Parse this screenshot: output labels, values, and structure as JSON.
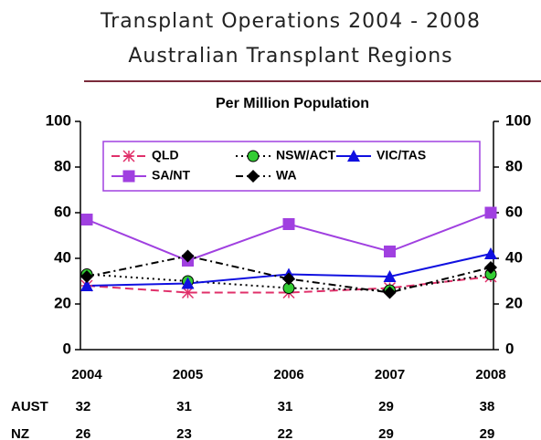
{
  "chart_data": {
    "type": "line",
    "title": "Transplant Operations  2004 - 2008",
    "subtitle": "Australian Transplant Regions",
    "axis_title": "Per Million Population",
    "categories": [
      "2004",
      "2005",
      "2006",
      "2007",
      "2008"
    ],
    "series": [
      {
        "name": "QLD",
        "color": "#e0306a",
        "marker": "asterisk",
        "dash": "9 5",
        "values": [
          28,
          25,
          25,
          27,
          32
        ]
      },
      {
        "name": "NSW/ACT",
        "color": "#000000",
        "marker_color": "#33cc33",
        "marker": "circle",
        "dash": "2 4",
        "values": [
          33,
          30,
          27,
          26,
          33
        ]
      },
      {
        "name": "VIC/TAS",
        "color": "#1010e0",
        "marker": "triangle",
        "values": [
          28,
          29,
          33,
          32,
          42
        ]
      },
      {
        "name": "SA/NT",
        "color": "#a040e0",
        "marker": "square",
        "values": [
          57,
          39,
          55,
          43,
          60
        ]
      },
      {
        "name": "WA",
        "color": "#000000",
        "marker": "diamond",
        "dash": "8 4 2 4",
        "values": [
          32,
          41,
          31,
          25,
          36
        ]
      }
    ],
    "ylim": [
      0,
      100
    ],
    "yticks": [
      0,
      20,
      40,
      60,
      80,
      100
    ],
    "y2lim": [
      0,
      100
    ],
    "y2ticks": [
      0,
      20,
      40,
      60,
      80,
      100
    ],
    "legend": "top",
    "table": {
      "rows": [
        {
          "label": "AUST",
          "values": [
            32,
            31,
            31,
            29,
            38
          ]
        },
        {
          "label": "NZ",
          "values": [
            26,
            23,
            22,
            29,
            29
          ]
        }
      ]
    }
  }
}
